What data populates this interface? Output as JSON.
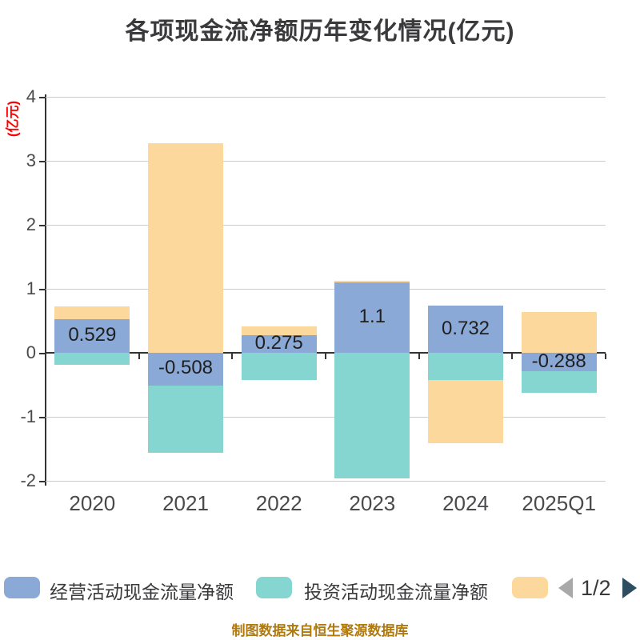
{
  "title": "各项现金流净额历年变化情况(亿元)",
  "y_axis_unit_label": "(亿元)",
  "footer": "制图数据来自恒生聚源数据库",
  "colors": {
    "operating_blue": "#8BA9D6",
    "investing_teal": "#85D5D0",
    "financing_peach": "#FDD89C",
    "title_text": "#3A3A3C",
    "axis_line": "#333333",
    "gridline": "#CCCCCC",
    "unit_label_red": "#FE0000",
    "footer_orange": "#B0790C",
    "pager_prev_gray": "#A9A9A9",
    "pager_next_blue": "#2F4D61"
  },
  "legend": {
    "items": [
      {
        "label": "经营活动现金流量净额",
        "color": "#8BA9D6"
      },
      {
        "label": "投资活动现金流量净额",
        "color": "#85D5D0"
      },
      {
        "label": "",
        "color": "#FDD89C"
      }
    ],
    "pagination": {
      "current": "1/2"
    }
  },
  "chart_data": {
    "type": "bar",
    "stacked": true,
    "title": "各项现金流净额历年变化情况(亿元)",
    "ylabel": "(亿元)",
    "categories": [
      "2020",
      "2021",
      "2022",
      "2023",
      "2024",
      "2025Q1"
    ],
    "series": [
      {
        "name": "经营活动现金流量净额",
        "color": "#8BA9D6",
        "values": [
          0.529,
          -0.508,
          0.275,
          1.1,
          0.732,
          -0.288
        ]
      },
      {
        "name": "投资活动现金流量净额",
        "color": "#85D5D0",
        "values": [
          -0.19,
          -1.05,
          -0.43,
          -1.96,
          -0.43,
          -0.34
        ]
      },
      {
        "name": "",
        "color": "#FDD89C",
        "values": [
          0.2,
          3.275,
          0.14,
          0.02,
          -0.98,
          0.64
        ]
      }
    ],
    "bar_labels": [
      "0.529",
      "-0.508",
      "0.275",
      "1.1",
      "0.732",
      "-0.288"
    ],
    "ylim": [
      -2,
      4
    ],
    "yticks": [
      4,
      3,
      2,
      1,
      0,
      -1,
      -2
    ],
    "grid": true,
    "legend_position": "bottom",
    "legend_page": "1/2"
  }
}
